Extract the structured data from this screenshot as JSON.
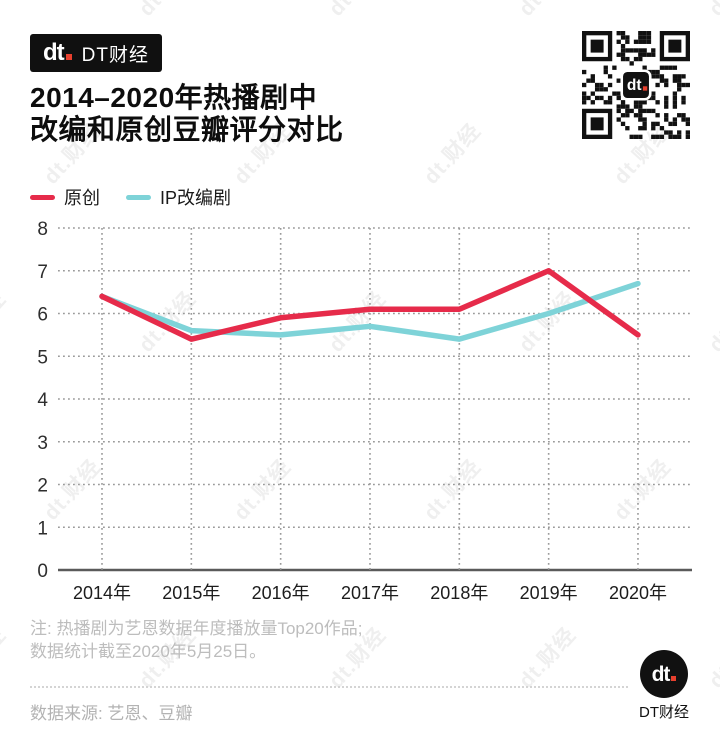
{
  "header": {
    "logo_text": "dt",
    "brand": "DT财经",
    "title_line1": "2014–2020年热播剧中",
    "title_line2": "改编和原创豆瓣评分对比"
  },
  "chart_data": {
    "type": "line",
    "title": "2014–2020年热播剧中改编和原创豆瓣评分对比",
    "categories": [
      "2014年",
      "2015年",
      "2016年",
      "2017年",
      "2018年",
      "2019年",
      "2020年"
    ],
    "series": [
      {
        "name": "原创",
        "color": "#e62b4a",
        "values": [
          6.4,
          5.4,
          5.9,
          6.1,
          6.1,
          7.0,
          5.5
        ]
      },
      {
        "name": "IP改编剧",
        "color": "#7ed3d8",
        "values": [
          6.4,
          5.6,
          5.5,
          5.7,
          5.4,
          6.0,
          6.7
        ]
      }
    ],
    "xlabel": "",
    "ylabel": "",
    "ylim": [
      0,
      8
    ],
    "yticks": [
      0,
      1,
      2,
      3,
      4,
      5,
      6,
      7,
      8
    ],
    "grid": "dotted",
    "legend_position": "top-left"
  },
  "footer": {
    "note_line1": "注: 热播剧为艺恩数据年度播放量Top20作品;",
    "note_line2": "数据统计截至2020年5月25日。",
    "source": "数据来源: 艺恩、豆瓣",
    "logo_text": "dt",
    "brand": "DT财经"
  },
  "watermark": "dt.财经",
  "colors": {
    "original_line": "#e62b4a",
    "ip_line": "#7ed3d8",
    "grid": "#9a9a9a",
    "axis": "#5a5a5a",
    "note_gray": "#bdbdbd",
    "badge_bg": "#101010",
    "logo_dot": "#e8402e"
  }
}
